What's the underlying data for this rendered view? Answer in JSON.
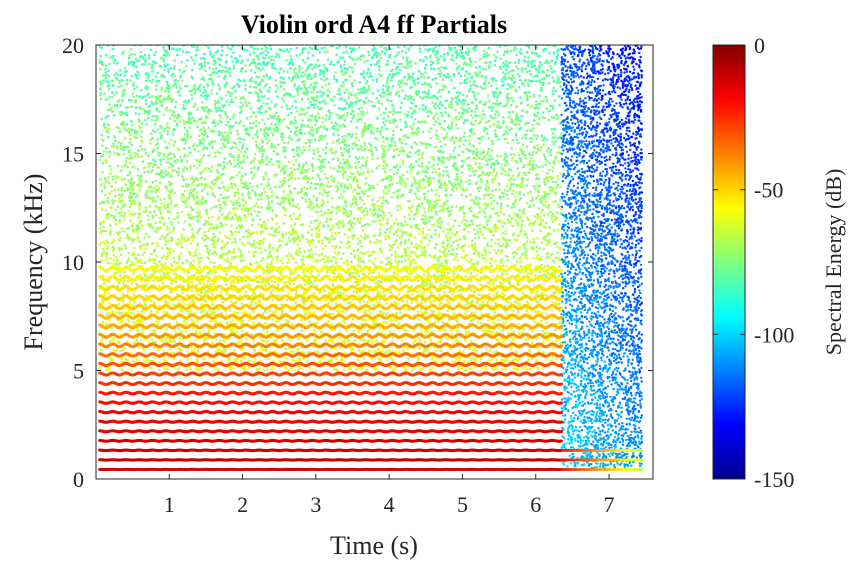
{
  "chart_data": {
    "type": "scatter",
    "title": "Violin ord A4 ff Partials",
    "xlabel": "Time (s)",
    "ylabel": "Frequency (kHz)",
    "xlim": [
      0,
      7.6
    ],
    "ylim": [
      0,
      20
    ],
    "x_ticks": [
      "1",
      "2",
      "3",
      "4",
      "5",
      "6",
      "7"
    ],
    "x_tick_values": [
      1,
      2,
      3,
      4,
      5,
      6,
      7
    ],
    "y_ticks": [
      "0",
      "5",
      "10",
      "15",
      "20"
    ],
    "y_tick_values": [
      0,
      5,
      10,
      15,
      20
    ],
    "colorbar": {
      "label": "Spectral Energy (dB)",
      "range": [
        -150,
        0
      ],
      "ticks": [
        "0",
        "-50",
        "-100",
        "-150"
      ],
      "tick_values": [
        0,
        -50,
        -100,
        -150
      ],
      "colormap": "jet"
    },
    "partials": {
      "fundamental_khz": 0.44,
      "count": 22,
      "start_time_s": 0.05,
      "end_time_s": 6.35,
      "release_end_time_s": 7.45,
      "vibrato_depth_pct": 1.0,
      "vibrato_rate_hz": 5.5,
      "energy_db_by_harmonic": [
        -12,
        -10,
        -12,
        -13,
        -15,
        -16,
        -18,
        -20,
        -22,
        -25,
        -28,
        -31,
        -35,
        -38,
        -41,
        -44,
        -46,
        -48,
        -50,
        -52,
        -54,
        -56
      ]
    },
    "noise": {
      "sustain_db_low_freq": -58,
      "sustain_db_high_freq": -82,
      "release_db_low_freq": -98,
      "release_db_high_freq": -118
    }
  }
}
